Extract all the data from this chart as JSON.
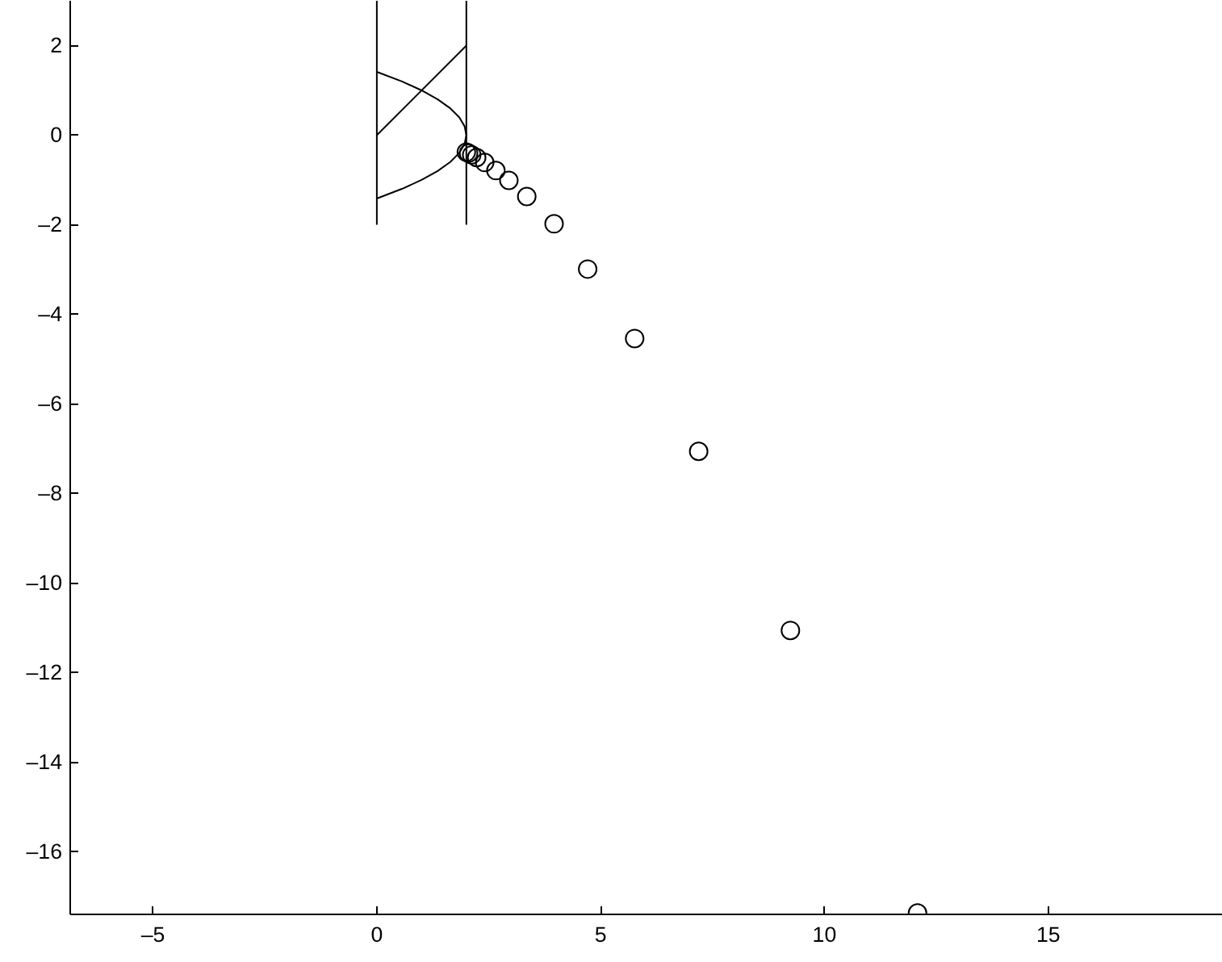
{
  "chart_data": {
    "type": "line",
    "xlim": [
      -6.85,
      18.9
    ],
    "ylim": [
      -17.4,
      3
    ],
    "xticks": [
      {
        "value": -5,
        "label": "–5"
      },
      0,
      5,
      10,
      15
    ],
    "yticks": [
      {
        "value": -16,
        "label": "–16"
      },
      {
        "value": -14,
        "label": "–14"
      },
      {
        "value": -12,
        "label": "–12"
      },
      {
        "value": -10,
        "label": "–10"
      },
      {
        "value": -8,
        "label": "–8"
      },
      {
        "value": -6,
        "label": "–6"
      },
      {
        "value": -4,
        "label": "–4"
      },
      {
        "value": -2,
        "label": "–2"
      },
      0,
      2
    ],
    "grid": false,
    "series": [
      {
        "color": "#000000",
        "x": [
          0,
          0
        ],
        "values": [
          -2,
          3
        ]
      },
      {
        "color": "#000000",
        "x": [
          2,
          2
        ],
        "values": [
          -2,
          3
        ]
      },
      {
        "color": "#000000",
        "x": [
          0,
          2
        ],
        "values": [
          0,
          2
        ]
      },
      {
        "color": "#000000",
        "x": [
          0.01,
          0.56,
          1.0,
          1.36,
          1.64,
          1.84,
          1.96,
          2,
          1.96,
          1.84,
          1.64,
          1.36,
          1.0,
          0.56,
          0.01
        ],
        "values": [
          1.41,
          1.2,
          1.0,
          0.8,
          0.6,
          0.4,
          0.2,
          0,
          -0.2,
          -0.4,
          -0.6,
          -0.8,
          -1.0,
          -1.2,
          -1.41
        ]
      },
      {
        "type": "scatter",
        "marker": "circle",
        "color": "#000000",
        "x": [
          12.08,
          9.24,
          7.19,
          5.76,
          4.71,
          3.96,
          3.35,
          2.95,
          2.66,
          2.41,
          2.23,
          2.12,
          2.05,
          2.0
        ],
        "values": [
          -17.37,
          -11.06,
          -7.06,
          -4.54,
          -2.99,
          -1.98,
          -1.37,
          -1.01,
          -0.79,
          -0.61,
          -0.5,
          -0.44,
          -0.4,
          -0.38
        ]
      }
    ]
  }
}
